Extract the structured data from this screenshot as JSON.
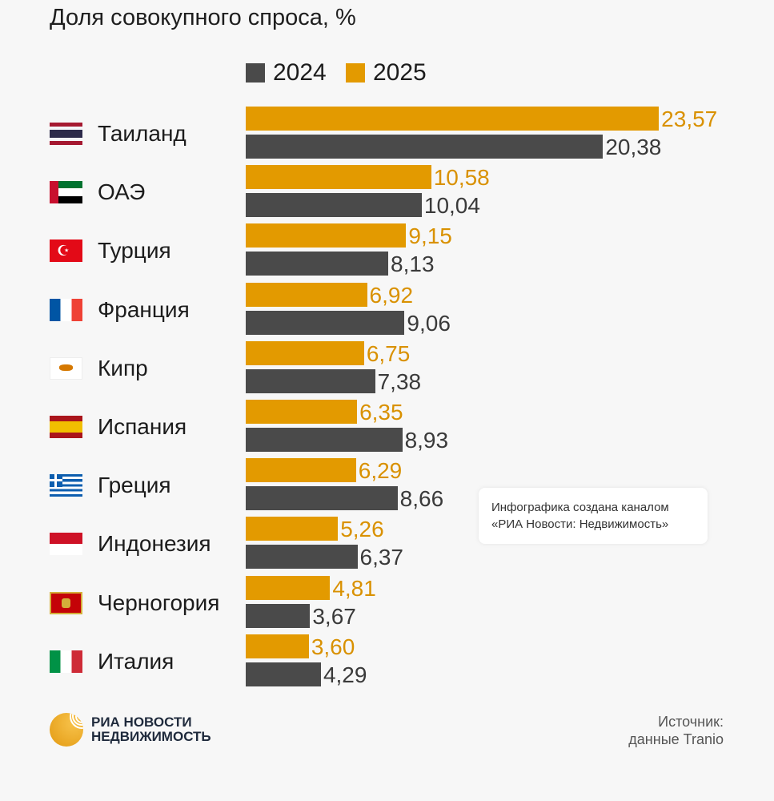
{
  "chart_data": {
    "type": "bar",
    "orientation": "horizontal",
    "title": "Доля совокупного спроса, %",
    "categories": [
      "Таиланд",
      "ОАЭ",
      "Турция",
      "Франция",
      "Кипр",
      "Испания",
      "Греция",
      "Индонезия",
      "Черногория",
      "Италия"
    ],
    "series": [
      {
        "name": "2025",
        "color": "#e39a00",
        "values": [
          23.57,
          10.58,
          9.15,
          6.92,
          6.75,
          6.35,
          6.29,
          5.26,
          4.81,
          3.6
        ],
        "labels": [
          "23,57",
          "10,58",
          "9,15",
          "6,92",
          "6,75",
          "6,35",
          "6,29",
          "5,26",
          "4,81",
          "3,60"
        ]
      },
      {
        "name": "2024",
        "color": "#4a4a4a",
        "values": [
          20.38,
          10.04,
          8.13,
          9.06,
          7.38,
          8.93,
          8.66,
          6.37,
          3.67,
          4.29
        ],
        "labels": [
          "20,38",
          "10,04",
          "8,13",
          "9,06",
          "7,38",
          "8,93",
          "8,66",
          "6,37",
          "3,67",
          "4,29"
        ]
      }
    ],
    "legend": [
      "2024",
      "2025"
    ],
    "legend_position": "top",
    "xlim": [
      0,
      24
    ],
    "grid": false
  },
  "flags": [
    "thailand-flag",
    "uae-flag",
    "turkey-flag",
    "france-flag",
    "cyprus-flag",
    "spain-flag",
    "greece-flag",
    "indonesia-flag",
    "montenegro-flag",
    "italy-flag"
  ],
  "info_box": {
    "line1": "Инфографика создана каналом",
    "line2": "«РИА Новости: Недвижимость»"
  },
  "logo": {
    "line1": "РИА НОВОСТИ",
    "line2": "НЕДВИЖИМОСТЬ"
  },
  "source": {
    "line1": "Источник:",
    "line2": "данные Tranio"
  }
}
